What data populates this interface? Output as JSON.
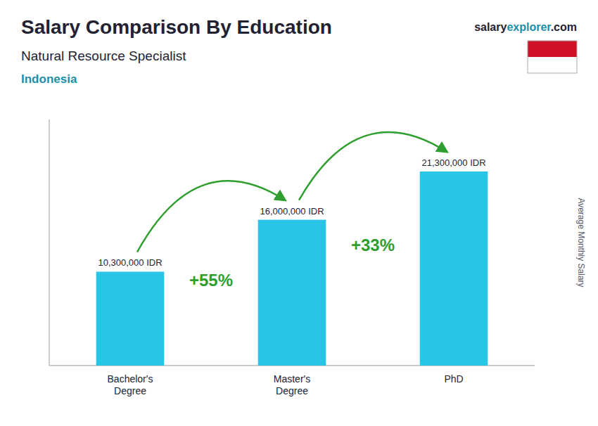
{
  "chart_data": {
    "type": "bar",
    "title": "Salary Comparison By Education",
    "subtitle": "Natural Resource Specialist",
    "country": "Indonesia",
    "source": [
      "salary",
      "explorer",
      ".com"
    ],
    "ylabel": "Average Monthly Salary",
    "categories": [
      "Bachelor's\nDegree",
      "Master's\nDegree",
      "PhD"
    ],
    "values": [
      10300000,
      16000000,
      21300000
    ],
    "value_labels": [
      "10,300,000 IDR",
      "16,000,000 IDR",
      "21,300,000 IDR"
    ],
    "data_labels": true,
    "annotations": [
      "+55%",
      "+33%"
    ],
    "color": "#29c5e6",
    "ylim": [
      0,
      27000000
    ],
    "tick_labels": "x",
    "grid": false
  }
}
